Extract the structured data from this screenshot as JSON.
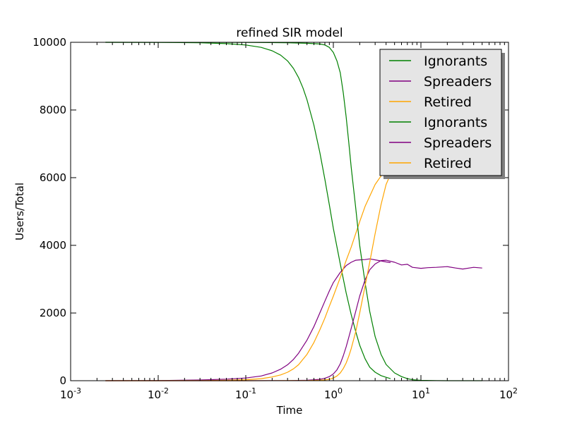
{
  "chart_data": {
    "type": "line",
    "title": "refined SIR model",
    "xlabel": "Time",
    "ylabel": "Users/Total",
    "xscale": "log",
    "xlim": [
      0.001,
      100
    ],
    "ylim": [
      0,
      10000
    ],
    "x_ticks": [
      {
        "base": "10",
        "exp": "-3"
      },
      {
        "base": "10",
        "exp": "-2"
      },
      {
        "base": "10",
        "exp": "-1"
      },
      {
        "base": "10",
        "exp": "0"
      },
      {
        "base": "10",
        "exp": "1"
      },
      {
        "base": "10",
        "exp": "2"
      }
    ],
    "y_ticks": [
      "0",
      "2000",
      "4000",
      "6000",
      "8000",
      "10000"
    ],
    "grid": false,
    "legend_position": "top-right",
    "series": [
      {
        "name": "Ignorants",
        "color": "#008000",
        "x": [
          0.0025,
          0.01,
          0.03,
          0.06,
          0.1,
          0.15,
          0.2,
          0.25,
          0.3,
          0.35,
          0.4,
          0.45,
          0.5,
          0.6,
          0.7,
          0.8,
          0.9,
          1.0,
          1.2,
          1.4,
          1.6,
          1.8,
          2.0,
          2.3,
          2.6,
          3.0,
          3.5,
          4.0,
          4.5
        ],
        "y": [
          10000,
          9998,
          9985,
          9960,
          9920,
          9850,
          9750,
          9620,
          9450,
          9230,
          8960,
          8650,
          8300,
          7550,
          6750,
          5950,
          5200,
          4500,
          3450,
          2600,
          1950,
          1450,
          1050,
          650,
          400,
          250,
          150,
          100,
          60
        ]
      },
      {
        "name": "Spreaders",
        "color": "#800080",
        "x": [
          0.0025,
          0.01,
          0.03,
          0.06,
          0.1,
          0.15,
          0.2,
          0.25,
          0.3,
          0.35,
          0.4,
          0.5,
          0.6,
          0.7,
          0.8,
          0.9,
          1.0,
          1.2,
          1.4,
          1.6,
          1.8,
          2.0,
          2.3,
          2.6,
          3.0,
          3.5,
          4.0,
          4.5
        ],
        "y": [
          0,
          5,
          20,
          45,
          80,
          140,
          230,
          340,
          470,
          630,
          810,
          1200,
          1600,
          2000,
          2350,
          2650,
          2900,
          3200,
          3400,
          3500,
          3560,
          3570,
          3580,
          3600,
          3570,
          3540,
          3510,
          3490
        ]
      },
      {
        "name": "Retired",
        "color": "#ffa500",
        "x": [
          0.0025,
          0.01,
          0.03,
          0.06,
          0.1,
          0.15,
          0.2,
          0.25,
          0.3,
          0.35,
          0.4,
          0.5,
          0.6,
          0.7,
          0.8,
          0.9,
          1.0,
          1.2,
          1.4,
          1.6,
          1.8,
          2.0,
          2.3,
          2.6,
          3.0,
          3.5,
          4.0
        ],
        "y": [
          0,
          1,
          5,
          15,
          30,
          60,
          110,
          170,
          250,
          350,
          470,
          780,
          1130,
          1500,
          1850,
          2200,
          2500,
          3050,
          3550,
          3950,
          4350,
          4700,
          5150,
          5450,
          5800,
          6050,
          6250
        ]
      },
      {
        "name": "Ignorants",
        "color": "#008000",
        "x": [
          0.0025,
          0.1,
          0.3,
          0.5,
          0.7,
          0.8,
          0.9,
          1.0,
          1.1,
          1.2,
          1.3,
          1.4,
          1.5,
          1.6,
          1.8,
          2.0,
          2.3,
          2.6,
          3.0,
          3.5,
          4.0,
          5.0,
          6.0,
          7.0,
          8.0,
          10.0,
          15.0,
          20.0,
          30.0,
          50.0
        ],
        "y": [
          10000,
          9998,
          9985,
          9970,
          9950,
          9920,
          9850,
          9700,
          9450,
          9100,
          8500,
          7800,
          7050,
          6300,
          5100,
          4000,
          2900,
          2050,
          1300,
          780,
          480,
          230,
          120,
          60,
          30,
          10,
          3,
          1,
          0,
          0
        ]
      },
      {
        "name": "Spreaders",
        "color": "#800080",
        "x": [
          0.0025,
          0.1,
          0.3,
          0.5,
          0.7,
          0.8,
          0.9,
          1.0,
          1.1,
          1.2,
          1.3,
          1.4,
          1.5,
          1.6,
          1.8,
          2.0,
          2.3,
          2.6,
          3.0,
          3.5,
          4.0,
          5.0,
          6.0,
          7.0,
          8.0,
          10.0,
          12.0,
          15.0,
          20.0,
          25.0,
          30.0,
          40.0,
          50.0
        ],
        "y": [
          0,
          1,
          5,
          15,
          40,
          70,
          120,
          200,
          320,
          500,
          740,
          1000,
          1280,
          1550,
          2050,
          2500,
          2980,
          3280,
          3450,
          3550,
          3560,
          3500,
          3420,
          3440,
          3350,
          3320,
          3340,
          3350,
          3370,
          3330,
          3300,
          3350,
          3330
        ]
      },
      {
        "name": "Retired",
        "color": "#ffa500",
        "x": [
          0.0025,
          0.1,
          0.3,
          0.5,
          0.7,
          0.8,
          0.9,
          1.0,
          1.1,
          1.2,
          1.3,
          1.4,
          1.5,
          1.6,
          1.8,
          2.0,
          2.3,
          2.6,
          3.0,
          3.5,
          4.0,
          4.5
        ],
        "y": [
          0,
          0,
          2,
          5,
          15,
          25,
          40,
          80,
          140,
          230,
          360,
          520,
          720,
          950,
          1450,
          2000,
          2800,
          3500,
          4350,
          5200,
          5800,
          6100
        ]
      }
    ]
  }
}
